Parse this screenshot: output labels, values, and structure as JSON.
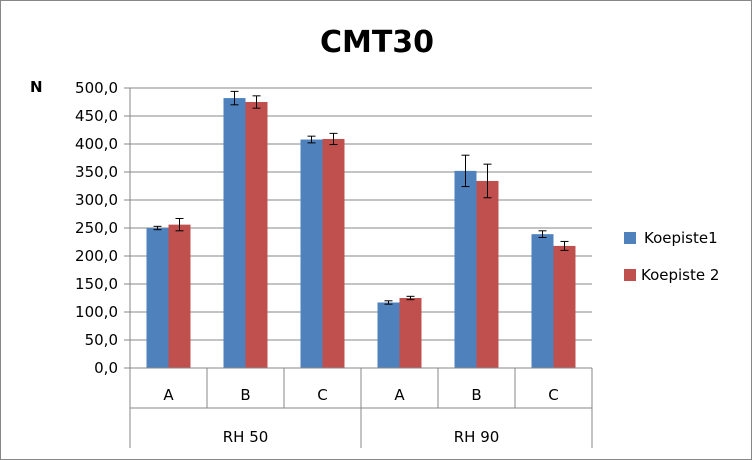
{
  "chart_data": {
    "type": "bar",
    "title": "CMT30",
    "ylabel": "N",
    "ylim": [
      0,
      500
    ],
    "ytick_step": 50,
    "ytick_labels": [
      "0,0",
      "50,0",
      "100,0",
      "150,0",
      "200,0",
      "250,0",
      "300,0",
      "350,0",
      "400,0",
      "450,0",
      "500,0"
    ],
    "categories": [
      "A",
      "B",
      "C",
      "A",
      "B",
      "C"
    ],
    "groups": [
      {
        "label": "RH 50",
        "span": [
          0,
          2
        ]
      },
      {
        "label": "RH 90",
        "span": [
          3,
          5
        ]
      }
    ],
    "series": [
      {
        "name": "Koepiste1",
        "color": "#4f81bd",
        "values": [
          250,
          482,
          408,
          117,
          352,
          239
        ],
        "errors": [
          3,
          12,
          6,
          3,
          28,
          6
        ]
      },
      {
        "name": "Koepiste 2",
        "color": "#c0504d",
        "values": [
          256,
          475,
          409,
          125,
          334,
          218
        ],
        "errors": [
          11,
          11,
          10,
          3,
          30,
          8
        ]
      }
    ],
    "grid": true,
    "legend_position": "right"
  }
}
